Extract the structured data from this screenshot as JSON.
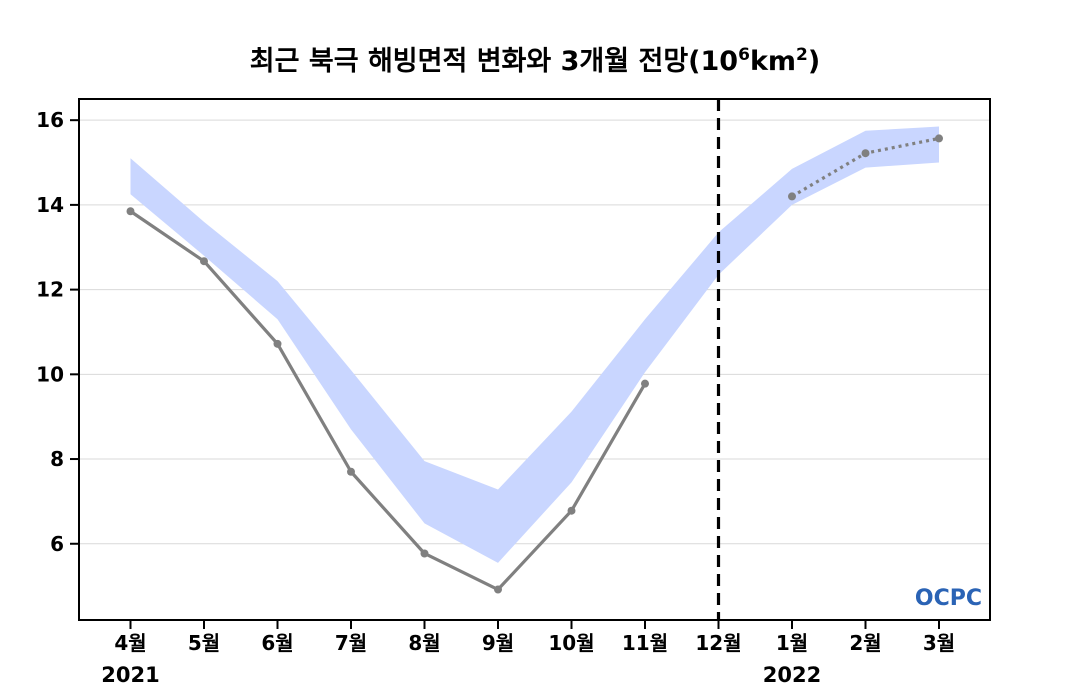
{
  "chart_data": {
    "type": "line",
    "title": "최근 북극 해빙면적 변화와 3개월 전망(10⁶km²)",
    "title_parts": {
      "main": "최근 북극 해빙면적 변화와 3개월 전망(10",
      "exp1": "6",
      "mid": "km",
      "exp2": "2",
      "end": ")"
    },
    "categories": [
      "4월",
      "5월",
      "6월",
      "7월",
      "8월",
      "9월",
      "10월",
      "11월",
      "12월",
      "1월",
      "2월",
      "3월"
    ],
    "year_labels": [
      {
        "text": "2021",
        "category_index": 0
      },
      {
        "text": "2022",
        "category_index": 9
      }
    ],
    "y_ticks": [
      "6",
      "8",
      "10",
      "12",
      "14",
      "16"
    ],
    "ylim": [
      4.2,
      16.5
    ],
    "divider_after_category_index": 8,
    "grid": "horizontal",
    "series": [
      {
        "kind": "observed",
        "style": "solid",
        "color": "#808080",
        "values": [
          13.85,
          12.67,
          10.72,
          7.7,
          5.77,
          4.92,
          6.78,
          9.78,
          null,
          null,
          null,
          null
        ]
      },
      {
        "kind": "forecast",
        "style": "dotted",
        "color": "#808080",
        "values": [
          null,
          null,
          null,
          null,
          null,
          null,
          null,
          null,
          null,
          14.2,
          15.22,
          15.57
        ]
      },
      {
        "kind": "range_band",
        "color": "#c9d6ff",
        "upper": [
          15.1,
          13.6,
          12.2,
          10.1,
          7.95,
          7.28,
          9.12,
          11.3,
          13.35,
          14.85,
          15.75,
          15.85
        ],
        "lower": [
          14.25,
          12.8,
          11.3,
          8.7,
          6.48,
          5.55,
          7.45,
          10.05,
          12.35,
          14.0,
          14.88,
          15.0
        ]
      }
    ],
    "logo": {
      "text": "OCPC",
      "color": "#2a63b5"
    }
  }
}
